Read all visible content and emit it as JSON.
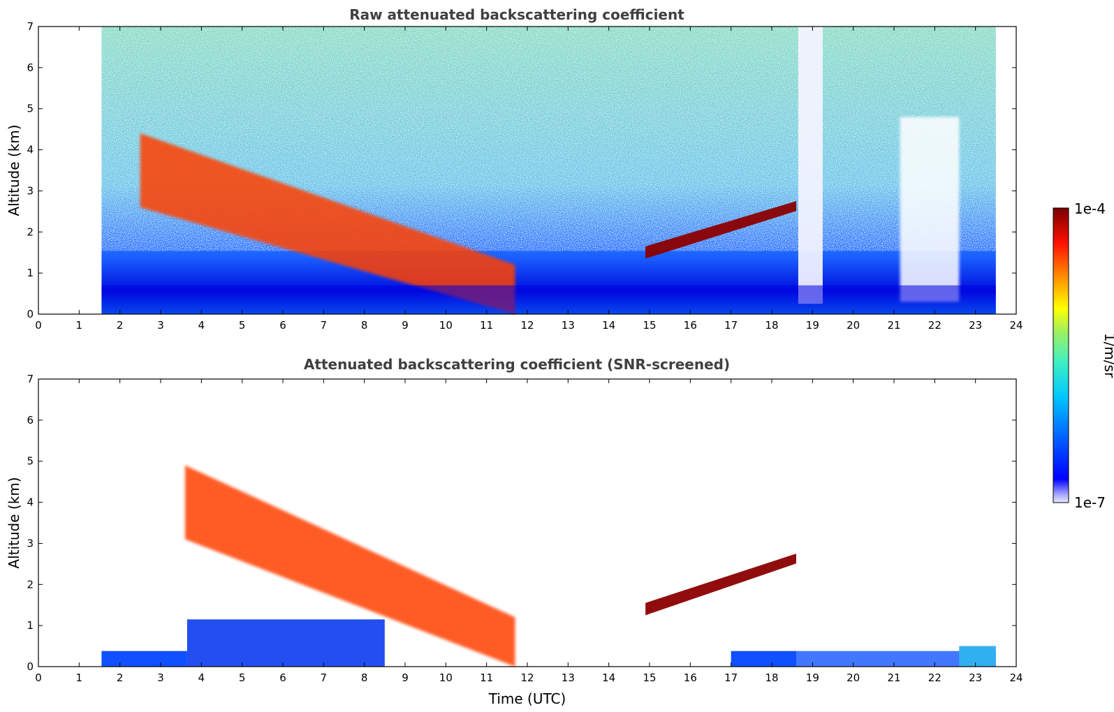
{
  "chart_data": [
    {
      "type": "heatmap",
      "title": "Raw attenuated backscattering coefficient",
      "xlabel": "",
      "ylabel": "Altitude (km)",
      "xlim": [
        0,
        24
      ],
      "ylim": [
        0,
        7
      ],
      "xticks": [
        "0",
        "1",
        "2",
        "3",
        "4",
        "5",
        "6",
        "7",
        "8",
        "9",
        "10",
        "11",
        "12",
        "13",
        "14",
        "15",
        "16",
        "17",
        "18",
        "19",
        "20",
        "21",
        "22",
        "23",
        "24"
      ],
      "yticks": [
        "0",
        "1",
        "2",
        "3",
        "4",
        "5",
        "6",
        "7"
      ],
      "data_extent_hours": [
        1.55,
        23.5
      ],
      "features": [
        {
          "name": "descending aerosol/cloud layer",
          "start_time": 2.5,
          "end_time": 11.7,
          "start_alt": 3.5,
          "end_alt": 0.3,
          "level": "high"
        },
        {
          "name": "elevated cloud layer",
          "start_time": 14.9,
          "end_time": 18.6,
          "start_alt": 1.5,
          "end_alt": 2.6,
          "level": "saturated"
        },
        {
          "name": "boundary layer",
          "start_time": 1.55,
          "end_time": 23.5,
          "top_alt": 0.7,
          "level": "low"
        }
      ]
    },
    {
      "type": "heatmap",
      "title": "Attenuated backscattering coefficient (SNR-screened)",
      "xlabel": "Time (UTC)",
      "ylabel": "Altitude (km)",
      "xlim": [
        0,
        24
      ],
      "ylim": [
        0,
        7
      ],
      "xticks": [
        "0",
        "1",
        "2",
        "3",
        "4",
        "5",
        "6",
        "7",
        "8",
        "9",
        "10",
        "11",
        "12",
        "13",
        "14",
        "15",
        "16",
        "17",
        "18",
        "19",
        "20",
        "21",
        "22",
        "23",
        "24"
      ],
      "yticks": [
        "0",
        "1",
        "2",
        "3",
        "4",
        "5",
        "6",
        "7"
      ],
      "data_extent_hours": [
        1.55,
        23.5
      ],
      "features": [
        {
          "name": "descending aerosol/cloud layer",
          "start_time": 3.6,
          "end_time": 11.7,
          "start_alt": 4.0,
          "end_alt": 0.3,
          "level": "high"
        },
        {
          "name": "elevated cloud layer",
          "start_time": 14.9,
          "end_time": 18.6,
          "start_alt": 1.4,
          "end_alt": 2.6,
          "level": "saturated"
        },
        {
          "name": "screened low layer",
          "start_time": 18.6,
          "end_time": 23.5,
          "top_alt": 0.4,
          "level": "low"
        }
      ]
    }
  ],
  "colorbar": {
    "max_label": "1e-4",
    "min_label": "1e-7",
    "unit_label": "1/m/sr",
    "scale": "log",
    "range": [
      1e-07,
      0.0001
    ]
  },
  "colors": {
    "low": "#0000e0",
    "mid": "#40e0d0",
    "high": "#ff4000",
    "saturated": "#8b0000"
  }
}
